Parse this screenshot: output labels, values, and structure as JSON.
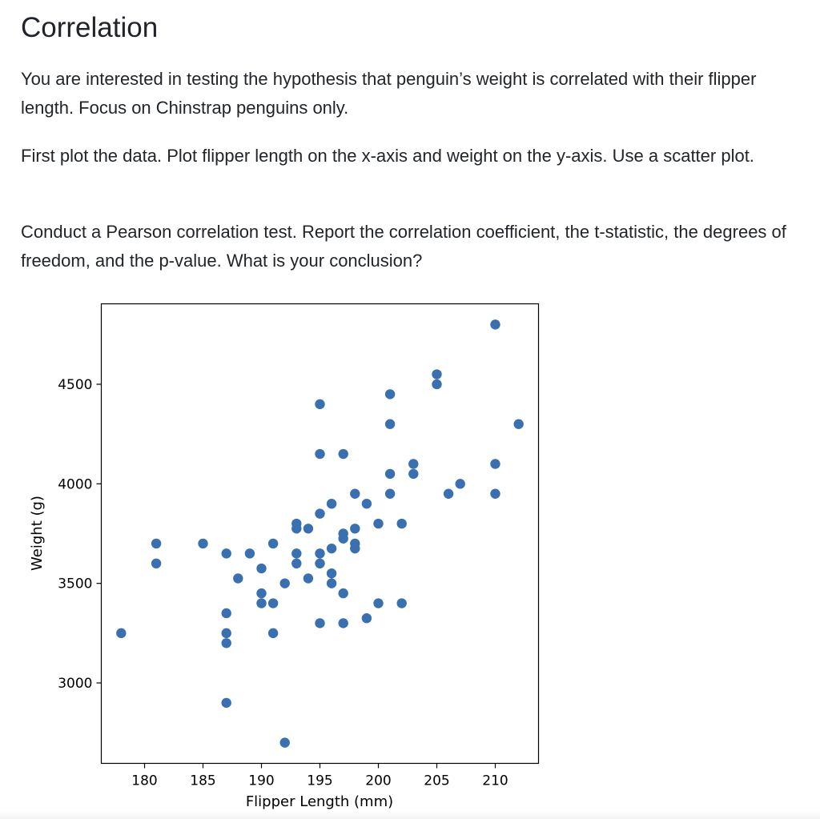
{
  "heading": "Correlation",
  "paragraphs": [
    "You are interested in testing the hypothesis that penguin’s weight is correlated with their flipper length. Focus on Chinstrap penguins only.",
    "First plot the data. Plot flipper length on the x-axis and weight on the y-axis. Use a scatter plot.",
    "Conduct a Pearson correlation test. Report the correlation coefficient, the t-statistic, the degrees of freedom, and the p-value. What is your conclusion?"
  ],
  "chart_data": {
    "type": "scatter",
    "title": "",
    "xlabel": "Flipper Length (mm)",
    "ylabel": "Weight (g)",
    "xlim": [
      176.3,
      213.7
    ],
    "ylim": [
      2596,
      4904
    ],
    "xticks": [
      180,
      185,
      190,
      195,
      200,
      205,
      210
    ],
    "yticks": [
      3000,
      3500,
      4000,
      4500
    ],
    "grid": false,
    "marker_color": "#3a6fb0",
    "points": [
      {
        "x": 178,
        "y": 3250
      },
      {
        "x": 181,
        "y": 3700
      },
      {
        "x": 181,
        "y": 3600
      },
      {
        "x": 185,
        "y": 3700
      },
      {
        "x": 187,
        "y": 3650
      },
      {
        "x": 187,
        "y": 3350
      },
      {
        "x": 187,
        "y": 3250
      },
      {
        "x": 187,
        "y": 3200
      },
      {
        "x": 187,
        "y": 2900
      },
      {
        "x": 188,
        "y": 3525
      },
      {
        "x": 189,
        "y": 3650
      },
      {
        "x": 190,
        "y": 3575
      },
      {
        "x": 190,
        "y": 3450
      },
      {
        "x": 190,
        "y": 3400
      },
      {
        "x": 191,
        "y": 3700
      },
      {
        "x": 191,
        "y": 3400
      },
      {
        "x": 191,
        "y": 3250
      },
      {
        "x": 192,
        "y": 3500
      },
      {
        "x": 192,
        "y": 2700
      },
      {
        "x": 193,
        "y": 3800
      },
      {
        "x": 193,
        "y": 3775
      },
      {
        "x": 193,
        "y": 3650
      },
      {
        "x": 193,
        "y": 3600
      },
      {
        "x": 194,
        "y": 3775
      },
      {
        "x": 194,
        "y": 3525
      },
      {
        "x": 195,
        "y": 4400
      },
      {
        "x": 195,
        "y": 4150
      },
      {
        "x": 195,
        "y": 3850
      },
      {
        "x": 195,
        "y": 3650
      },
      {
        "x": 195,
        "y": 3600
      },
      {
        "x": 195,
        "y": 3300
      },
      {
        "x": 196,
        "y": 3900
      },
      {
        "x": 196,
        "y": 3675
      },
      {
        "x": 196,
        "y": 3550
      },
      {
        "x": 196,
        "y": 3500
      },
      {
        "x": 197,
        "y": 4150
      },
      {
        "x": 197,
        "y": 3750
      },
      {
        "x": 197,
        "y": 3725
      },
      {
        "x": 197,
        "y": 3450
      },
      {
        "x": 197,
        "y": 3300
      },
      {
        "x": 198,
        "y": 3950
      },
      {
        "x": 198,
        "y": 3775
      },
      {
        "x": 198,
        "y": 3700
      },
      {
        "x": 198,
        "y": 3675
      },
      {
        "x": 199,
        "y": 3900
      },
      {
        "x": 199,
        "y": 3325
      },
      {
        "x": 200,
        "y": 3800
      },
      {
        "x": 200,
        "y": 3400
      },
      {
        "x": 201,
        "y": 4450
      },
      {
        "x": 201,
        "y": 4300
      },
      {
        "x": 201,
        "y": 4050
      },
      {
        "x": 201,
        "y": 3950
      },
      {
        "x": 202,
        "y": 3800
      },
      {
        "x": 202,
        "y": 3400
      },
      {
        "x": 203,
        "y": 4100
      },
      {
        "x": 203,
        "y": 4050
      },
      {
        "x": 205,
        "y": 4550
      },
      {
        "x": 205,
        "y": 4500
      },
      {
        "x": 206,
        "y": 3950
      },
      {
        "x": 207,
        "y": 4000
      },
      {
        "x": 210,
        "y": 4800
      },
      {
        "x": 210,
        "y": 4100
      },
      {
        "x": 210,
        "y": 3950
      },
      {
        "x": 212,
        "y": 4300
      }
    ]
  }
}
